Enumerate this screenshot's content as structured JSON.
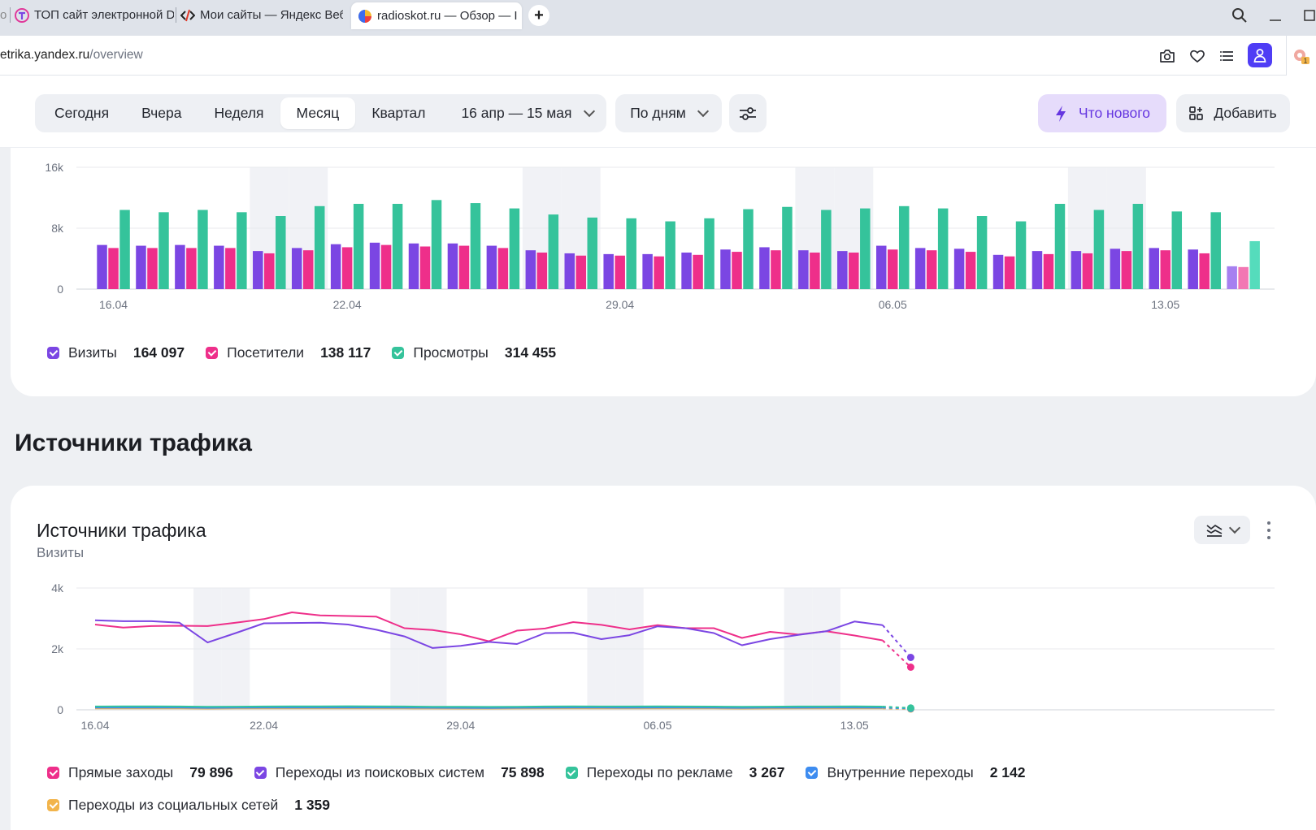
{
  "browser": {
    "tabs": [
      {
        "title": "ТОП сайт электронной DI",
        "icon": "t-logo-icon"
      },
      {
        "title": "Мои сайты — Яндекс Веб",
        "icon": "code-icon"
      },
      {
        "title": "radioskot.ru — Обзор — I",
        "icon": "metrika-icon",
        "active": true
      }
    ],
    "url_host": "etrika.yandex.ru",
    "url_path": "/overview"
  },
  "toolbar": {
    "periods": [
      "Сегодня",
      "Вчера",
      "Неделя",
      "Месяц",
      "Квартал"
    ],
    "active_period": "Месяц",
    "date_range": "16 апр — 15 мая",
    "grouping": "По дням",
    "whats_new": "Что нового",
    "add": "Добавить"
  },
  "colors": {
    "visits": "#7b46e3",
    "visitors": "#ee2f8a",
    "views": "#35c39b",
    "direct": "#ee2f8a",
    "search": "#7b46e3",
    "ads": "#35c39b",
    "internal": "#3d8cf0",
    "social": "#f2b44b"
  },
  "section_title": "Источники трафика",
  "chart_data": [
    {
      "type": "bar",
      "x": [
        "16.04",
        "17.04",
        "18.04",
        "19.04",
        "20.04",
        "21.04",
        "22.04",
        "23.04",
        "24.04",
        "25.04",
        "26.04",
        "27.04",
        "28.04",
        "29.04",
        "30.04",
        "01.05",
        "02.05",
        "03.05",
        "04.05",
        "05.05",
        "06.05",
        "07.05",
        "08.05",
        "09.05",
        "10.05",
        "11.05",
        "12.05",
        "13.05",
        "14.05",
        "15.05"
      ],
      "x_tick_labels": [
        "16.04",
        "22.04",
        "29.04",
        "06.05",
        "13.05"
      ],
      "y_tick_labels": [
        "0",
        "8k",
        "16k"
      ],
      "ylim": [
        0,
        16000
      ],
      "series": [
        {
          "name": "Визиты",
          "total": "164 097",
          "values": [
            5800,
            5700,
            5800,
            5700,
            5000,
            5400,
            5900,
            6100,
            6000,
            6000,
            5700,
            5100,
            4700,
            4600,
            4600,
            4800,
            5200,
            5500,
            5100,
            5000,
            5700,
            5400,
            5300,
            4500,
            5000,
            5000,
            5300,
            5400,
            5200,
            3000
          ]
        },
        {
          "name": "Посетители",
          "total": "138 117",
          "values": [
            5400,
            5400,
            5400,
            5400,
            4700,
            5100,
            5500,
            5800,
            5600,
            5700,
            5400,
            4800,
            4400,
            4400,
            4300,
            4500,
            4900,
            5100,
            4800,
            4800,
            5200,
            5100,
            4900,
            4300,
            4600,
            4700,
            5000,
            5100,
            4700,
            2900
          ]
        },
        {
          "name": "Просмотры",
          "total": "314 455",
          "values": [
            10400,
            10100,
            10400,
            10100,
            9600,
            10900,
            11200,
            11200,
            11700,
            11300,
            10600,
            9800,
            9400,
            9300,
            8900,
            9300,
            10500,
            10800,
            10400,
            10600,
            10900,
            10600,
            9600,
            8900,
            11200,
            10400,
            11200,
            10200,
            10100,
            6300
          ]
        }
      ],
      "incomplete_last_point": true,
      "weekend_shading": true
    },
    {
      "type": "line",
      "title": "Источники трафика",
      "subtitle": "Визиты",
      "x": [
        "16.04",
        "17.04",
        "18.04",
        "19.04",
        "20.04",
        "21.04",
        "22.04",
        "23.04",
        "24.04",
        "25.04",
        "26.04",
        "27.04",
        "28.04",
        "29.04",
        "30.04",
        "01.05",
        "02.05",
        "03.05",
        "04.05",
        "05.05",
        "06.05",
        "07.05",
        "08.05",
        "09.05",
        "10.05",
        "11.05",
        "12.05",
        "13.05",
        "14.05",
        "15.05"
      ],
      "x_tick_labels": [
        "16.04",
        "22.04",
        "29.04",
        "06.05",
        "13.05"
      ],
      "y_tick_labels": [
        "0",
        "2k",
        "4k"
      ],
      "ylim": [
        0,
        4000
      ],
      "series": [
        {
          "name": "Прямые заходы",
          "total": "79 896",
          "values": [
            2800,
            2700,
            2750,
            2760,
            2750,
            2860,
            2980,
            3200,
            3100,
            3080,
            3060,
            2680,
            2620,
            2480,
            2250,
            2600,
            2670,
            2880,
            2790,
            2640,
            2780,
            2680,
            2680,
            2360,
            2560,
            2470,
            2580,
            2440,
            2280,
            1400
          ]
        },
        {
          "name": "Переходы из поисковых систем",
          "total": "75 898",
          "values": [
            2940,
            2910,
            2910,
            2860,
            2210,
            2520,
            2840,
            2850,
            2860,
            2800,
            2630,
            2410,
            2030,
            2100,
            2230,
            2160,
            2520,
            2530,
            2320,
            2450,
            2740,
            2680,
            2520,
            2120,
            2320,
            2460,
            2580,
            2900,
            2780,
            1720
          ]
        },
        {
          "name": "Переходы по рекламе",
          "total": "3 267",
          "values": [
            110,
            115,
            112,
            108,
            100,
            105,
            110,
            112,
            115,
            118,
            112,
            108,
            100,
            98,
            96,
            102,
            108,
            112,
            110,
            108,
            112,
            110,
            106,
            100,
            104,
            108,
            110,
            112,
            106,
            60
          ]
        },
        {
          "name": "Внутренние переходы",
          "total": "2 142",
          "values": [
            72,
            74,
            73,
            71,
            65,
            70,
            72,
            74,
            75,
            76,
            73,
            70,
            66,
            64,
            62,
            66,
            70,
            72,
            71,
            70,
            73,
            72,
            69,
            65,
            68,
            70,
            72,
            73,
            70,
            40
          ]
        },
        {
          "name": "Переходы из социальных сетей",
          "total": "1 359",
          "values": [
            46,
            47,
            46,
            45,
            41,
            44,
            46,
            47,
            48,
            48,
            46,
            44,
            42,
            41,
            40,
            42,
            44,
            46,
            45,
            44,
            46,
            45,
            44,
            41,
            43,
            44,
            45,
            46,
            44,
            26
          ]
        }
      ],
      "incomplete_last_point": true,
      "weekend_shading": true
    }
  ]
}
